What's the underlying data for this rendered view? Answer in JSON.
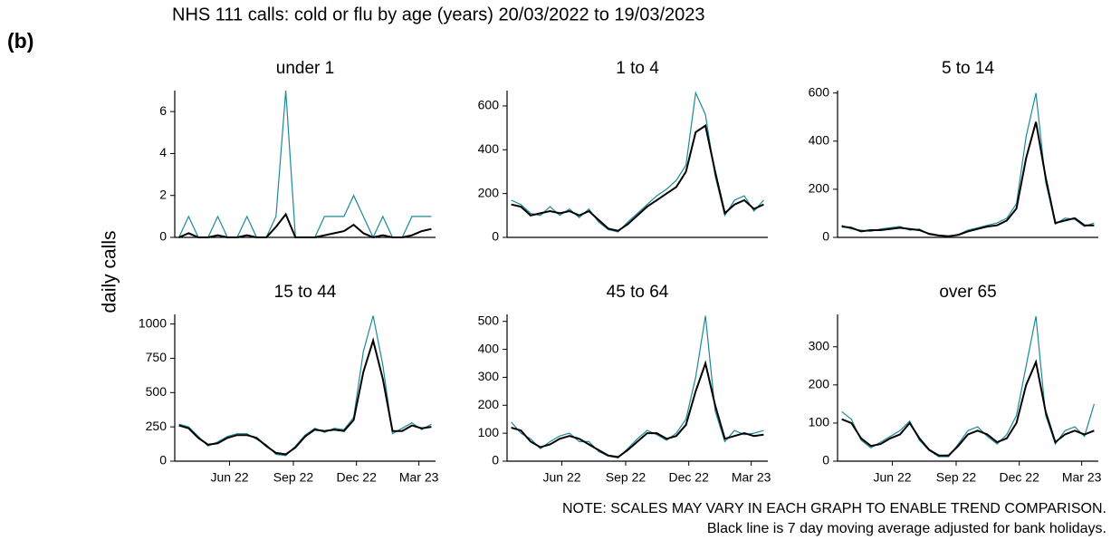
{
  "panel_label": "(b)",
  "title": "NHS 111 calls: cold or flu by age (years) 20/03/2022 to 19/03/2023",
  "ylabel": "daily calls",
  "notes": [
    "NOTE: SCALES MAY VARY IN EACH GRAPH TO ENABLE TREND COMPARISON.",
    "Black line is 7 day moving average adjusted for bank holidays."
  ],
  "chart_data": [
    {
      "type": "line",
      "title": "under 1",
      "x": [
        0,
        14,
        28,
        42,
        56,
        70,
        84,
        98,
        112,
        126,
        140,
        154,
        168,
        182,
        196,
        210,
        224,
        238,
        252,
        266,
        280,
        294,
        308,
        322,
        336,
        350,
        364
      ],
      "xlim": [
        -6,
        370
      ],
      "ylim": [
        0,
        7
      ],
      "yticks": [
        0,
        2,
        4,
        6
      ],
      "series": [
        {
          "color": "#1a8a9a",
          "values": [
            0,
            1,
            0,
            0,
            1,
            0,
            0,
            1,
            0,
            0,
            1,
            7,
            0,
            0,
            0,
            1,
            1,
            1,
            2,
            1,
            0,
            1,
            0,
            0,
            1,
            1,
            1
          ]
        },
        {
          "color": "#000000",
          "values": [
            0,
            0.2,
            0,
            0,
            0.1,
            0,
            0,
            0.1,
            0,
            0,
            0.5,
            1.1,
            0,
            0,
            0,
            0.1,
            0.2,
            0.3,
            0.6,
            0.2,
            0,
            0.1,
            0,
            0,
            0.1,
            0.3,
            0.4
          ]
        }
      ]
    },
    {
      "type": "line",
      "title": "1 to 4",
      "x": [
        0,
        14,
        28,
        42,
        56,
        70,
        84,
        98,
        112,
        126,
        140,
        154,
        168,
        182,
        196,
        210,
        224,
        238,
        252,
        266,
        280,
        294,
        308,
        322,
        336,
        350,
        364
      ],
      "xlim": [
        -6,
        370
      ],
      "ylim": [
        0,
        670
      ],
      "yticks": [
        0,
        200,
        400,
        600
      ],
      "series": [
        {
          "color": "#1a8a9a",
          "values": [
            170,
            150,
            110,
            100,
            140,
            100,
            130,
            90,
            130,
            70,
            35,
            25,
            70,
            110,
            150,
            190,
            220,
            260,
            330,
            660,
            560,
            280,
            100,
            170,
            190,
            120,
            170
          ]
        },
        {
          "color": "#000000",
          "values": [
            150,
            140,
            100,
            110,
            120,
            110,
            120,
            100,
            120,
            80,
            40,
            30,
            60,
            100,
            140,
            170,
            200,
            230,
            300,
            480,
            510,
            300,
            110,
            150,
            170,
            130,
            150
          ]
        }
      ]
    },
    {
      "type": "line",
      "title": "5 to 14",
      "x": [
        0,
        14,
        28,
        42,
        56,
        70,
        84,
        98,
        112,
        126,
        140,
        154,
        168,
        182,
        196,
        210,
        224,
        238,
        252,
        266,
        280,
        294,
        308,
        322,
        336,
        350,
        364
      ],
      "xlim": [
        -6,
        370
      ],
      "ylim": [
        0,
        610
      ],
      "yticks": [
        0,
        200,
        400,
        600
      ],
      "series": [
        {
          "color": "#1a8a9a",
          "values": [
            50,
            35,
            30,
            25,
            35,
            40,
            45,
            30,
            35,
            12,
            6,
            4,
            12,
            30,
            40,
            50,
            60,
            80,
            140,
            420,
            600,
            230,
            55,
            80,
            75,
            45,
            60
          ]
        },
        {
          "color": "#000000",
          "values": [
            45,
            40,
            25,
            30,
            30,
            35,
            40,
            35,
            30,
            15,
            8,
            5,
            10,
            25,
            35,
            45,
            50,
            70,
            120,
            330,
            480,
            250,
            60,
            70,
            80,
            50,
            50
          ]
        }
      ]
    },
    {
      "type": "line",
      "title": "15 to 44",
      "x": [
        0,
        14,
        28,
        42,
        56,
        70,
        84,
        98,
        112,
        126,
        140,
        154,
        168,
        182,
        196,
        210,
        224,
        238,
        252,
        266,
        280,
        294,
        308,
        322,
        336,
        350,
        364
      ],
      "xlim": [
        -6,
        370
      ],
      "ylim": [
        0,
        1070
      ],
      "yticks": [
        0,
        250,
        500,
        750,
        1000
      ],
      "xticks": [
        {
          "value": 73,
          "label": "Jun 22"
        },
        {
          "value": 165,
          "label": "Sep 22"
        },
        {
          "value": 256,
          "label": "Dec 22"
        },
        {
          "value": 346,
          "label": "Mar 23"
        }
      ],
      "series": [
        {
          "color": "#1a8a9a",
          "values": [
            270,
            250,
            180,
            110,
            140,
            180,
            200,
            200,
            160,
            120,
            50,
            40,
            110,
            190,
            240,
            210,
            240,
            230,
            320,
            800,
            1060,
            700,
            200,
            240,
            280,
            230,
            270
          ]
        },
        {
          "color": "#000000",
          "values": [
            260,
            240,
            170,
            120,
            130,
            170,
            190,
            190,
            170,
            110,
            60,
            50,
            100,
            180,
            230,
            220,
            230,
            220,
            300,
            650,
            880,
            600,
            220,
            220,
            260,
            240,
            250
          ]
        }
      ]
    },
    {
      "type": "line",
      "title": "45 to 64",
      "x": [
        0,
        14,
        28,
        42,
        56,
        70,
        84,
        98,
        112,
        126,
        140,
        154,
        168,
        182,
        196,
        210,
        224,
        238,
        252,
        266,
        280,
        294,
        308,
        322,
        336,
        350,
        364
      ],
      "xlim": [
        -6,
        370
      ],
      "ylim": [
        0,
        525
      ],
      "yticks": [
        0,
        100,
        200,
        300,
        400,
        500
      ],
      "xticks": [
        {
          "value": 73,
          "label": "Jun 22"
        },
        {
          "value": 165,
          "label": "Sep 22"
        },
        {
          "value": 256,
          "label": "Dec 22"
        },
        {
          "value": 346,
          "label": "Mar 23"
        }
      ],
      "series": [
        {
          "color": "#1a8a9a",
          "values": [
            140,
            100,
            80,
            45,
            70,
            90,
            100,
            70,
            70,
            35,
            18,
            12,
            45,
            80,
            110,
            95,
            75,
            100,
            150,
            300,
            520,
            180,
            70,
            110,
            95,
            100,
            110
          ]
        },
        {
          "color": "#000000",
          "values": [
            120,
            110,
            70,
            50,
            60,
            80,
            90,
            80,
            60,
            40,
            20,
            15,
            40,
            70,
            100,
            100,
            80,
            90,
            130,
            250,
            350,
            200,
            80,
            90,
            100,
            90,
            95
          ]
        }
      ]
    },
    {
      "type": "line",
      "title": "over 65",
      "x": [
        0,
        14,
        28,
        42,
        56,
        70,
        84,
        98,
        112,
        126,
        140,
        154,
        168,
        182,
        196,
        210,
        224,
        238,
        252,
        266,
        280,
        294,
        308,
        322,
        336,
        350,
        364
      ],
      "xlim": [
        -6,
        370
      ],
      "ylim": [
        0,
        385
      ],
      "yticks": [
        0,
        100,
        200,
        300
      ],
      "xticks": [
        {
          "value": 73,
          "label": "Jun 22"
        },
        {
          "value": 165,
          "label": "Sep 22"
        },
        {
          "value": 256,
          "label": "Dec 22"
        },
        {
          "value": 346,
          "label": "Mar 23"
        }
      ],
      "series": [
        {
          "color": "#1a8a9a",
          "values": [
            130,
            110,
            55,
            35,
            50,
            65,
            80,
            105,
            55,
            28,
            12,
            12,
            45,
            80,
            90,
            65,
            45,
            70,
            120,
            250,
            380,
            120,
            45,
            80,
            90,
            65,
            150
          ]
        },
        {
          "color": "#000000",
          "values": [
            110,
            100,
            60,
            40,
            45,
            60,
            70,
            100,
            60,
            30,
            15,
            15,
            40,
            70,
            80,
            70,
            50,
            60,
            100,
            200,
            260,
            130,
            50,
            70,
            80,
            70,
            80
          ]
        }
      ]
    }
  ]
}
